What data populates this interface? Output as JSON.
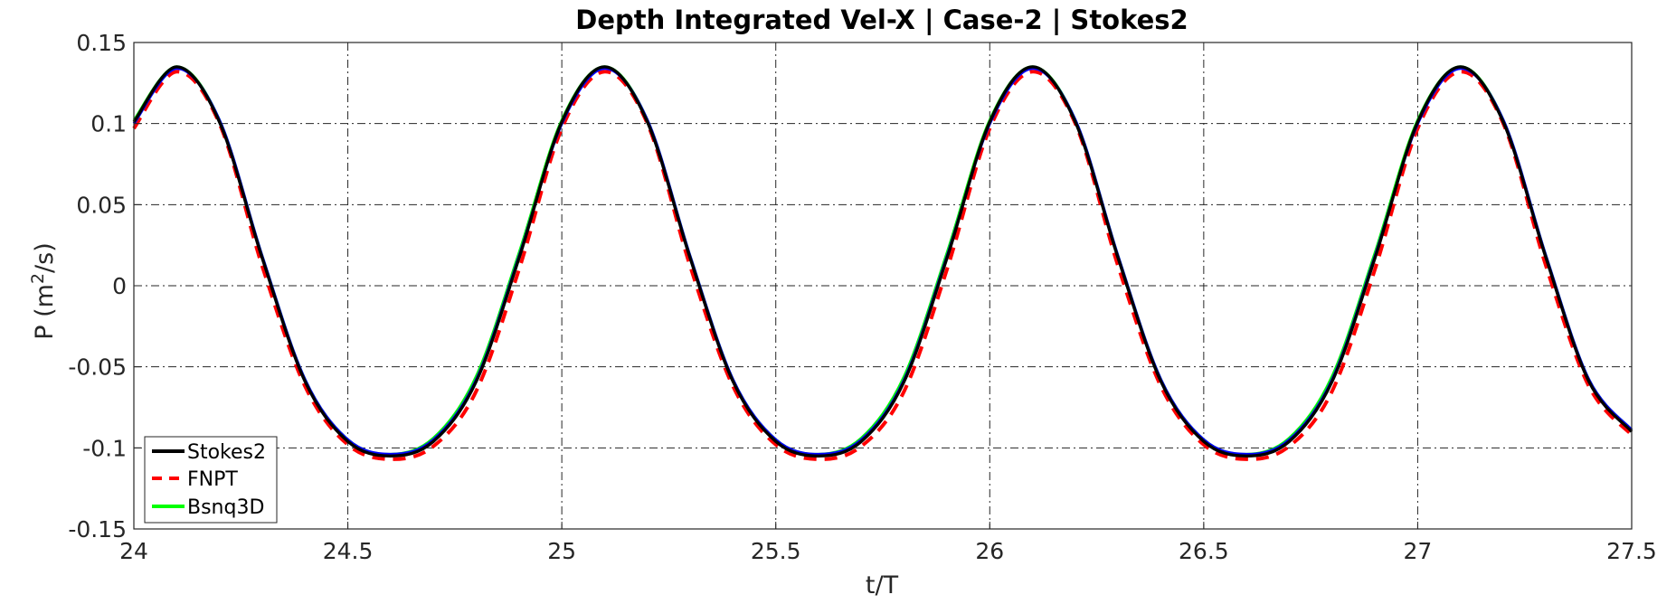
{
  "chart_data": {
    "type": "line",
    "title": "Depth Integrated Vel-X | Case-2 | Stokes2",
    "xlabel": "t/T",
    "ylabel": {
      "main": "P (m",
      "sup": "2",
      "tail": "/s)"
    },
    "xlim": [
      24,
      27.5
    ],
    "ylim": [
      -0.15,
      0.15
    ],
    "xticks": [
      24,
      24.5,
      25,
      25.5,
      26,
      26.5,
      27,
      27.5
    ],
    "xtick_labels": [
      "24",
      "24.5",
      "25",
      "25.5",
      "26",
      "26.5",
      "27",
      "27.5"
    ],
    "yticks": [
      0.15,
      0.1,
      0.05,
      0,
      -0.05,
      -0.1,
      -0.15
    ],
    "ytick_labels": [
      "0.15",
      "0.1",
      "0.05",
      "0",
      "-0.05",
      "-0.1",
      "-0.15"
    ],
    "grid": true,
    "legend_position": "bottom-left",
    "series": [
      {
        "name": "Stokes2",
        "color": "#000000",
        "style": "solid",
        "x": [
          24.0,
          24.1,
          24.2,
          24.3,
          24.4,
          24.5,
          24.6,
          24.7,
          24.8,
          24.9,
          25.0,
          25.1,
          25.2,
          25.3,
          25.4,
          25.5,
          25.6,
          25.7,
          25.8,
          25.9,
          26.0,
          26.1,
          26.2,
          26.3,
          26.4,
          26.5,
          26.6,
          26.7,
          26.8,
          26.9,
          27.0,
          27.1,
          27.2,
          27.3,
          27.4,
          27.5
        ],
        "y": [
          0.101,
          0.135,
          0.101,
          0.017,
          -0.059,
          -0.096,
          -0.105,
          -0.096,
          -0.059,
          0.017,
          0.101,
          0.135,
          0.101,
          0.017,
          -0.059,
          -0.096,
          -0.105,
          -0.096,
          -0.059,
          0.017,
          0.101,
          0.135,
          0.101,
          0.017,
          -0.059,
          -0.096,
          -0.105,
          -0.096,
          -0.059,
          0.017,
          0.101,
          0.135,
          0.101,
          0.017,
          -0.059,
          -0.09
        ]
      },
      {
        "name": "FNPT",
        "color": "#ff0000",
        "style": "dashed",
        "x": [
          24.0,
          24.1,
          24.2,
          24.3,
          24.4,
          24.5,
          24.6,
          24.7,
          24.8,
          24.9,
          25.0,
          25.1,
          25.2,
          25.3,
          25.4,
          25.5,
          25.6,
          25.7,
          25.8,
          25.9,
          26.0,
          26.1,
          26.2,
          26.3,
          26.4,
          26.5,
          26.6,
          26.7,
          26.8,
          26.9,
          27.0,
          27.1,
          27.2,
          27.3,
          27.4,
          27.5
        ],
        "y": [
          0.097,
          0.132,
          0.1,
          0.012,
          -0.062,
          -0.098,
          -0.107,
          -0.099,
          -0.065,
          0.01,
          0.097,
          0.132,
          0.1,
          0.012,
          -0.062,
          -0.098,
          -0.107,
          -0.099,
          -0.065,
          0.01,
          0.097,
          0.132,
          0.1,
          0.012,
          -0.062,
          -0.098,
          -0.107,
          -0.099,
          -0.065,
          0.01,
          0.097,
          0.132,
          0.1,
          0.012,
          -0.062,
          -0.092
        ]
      },
      {
        "name": "Bsnq3D",
        "color": "#00ff00",
        "style": "solid",
        "x": [
          24.0,
          24.1,
          24.2,
          24.3,
          24.4,
          24.5,
          24.6,
          24.7,
          24.8,
          24.9,
          25.0,
          25.1,
          25.2,
          25.3,
          25.4,
          25.5,
          25.6,
          25.7,
          25.8,
          25.9,
          26.0,
          26.1,
          26.2,
          26.3,
          26.4,
          26.5,
          26.6,
          26.7,
          26.8,
          26.9,
          27.0,
          27.1,
          27.2,
          27.3,
          27.4,
          27.5
        ],
        "y": [
          0.102,
          0.135,
          0.102,
          0.018,
          -0.058,
          -0.095,
          -0.104,
          -0.094,
          -0.056,
          0.02,
          0.102,
          0.135,
          0.102,
          0.018,
          -0.058,
          -0.095,
          -0.104,
          -0.094,
          -0.056,
          0.02,
          0.102,
          0.135,
          0.102,
          0.018,
          -0.058,
          -0.095,
          -0.104,
          -0.094,
          -0.056,
          0.02,
          0.102,
          0.135,
          0.102,
          0.018,
          -0.058,
          -0.089
        ]
      },
      {
        "color": "#0000ff",
        "style": "solid",
        "x": [
          24.0,
          24.1,
          24.2,
          24.3,
          24.4,
          24.5,
          24.6,
          24.7,
          24.8,
          24.9,
          25.0,
          25.1,
          25.2,
          25.3,
          25.4,
          25.5,
          25.6,
          25.7,
          25.8,
          25.9,
          26.0,
          26.1,
          26.2,
          26.3,
          26.4,
          26.5,
          26.6,
          26.7,
          26.8,
          26.9,
          27.0,
          27.1,
          27.2,
          27.3,
          27.4,
          27.5
        ],
        "y": [
          0.1,
          0.134,
          0.102,
          0.018,
          -0.058,
          -0.095,
          -0.104,
          -0.095,
          -0.058,
          0.018,
          0.1,
          0.134,
          0.102,
          0.018,
          -0.058,
          -0.095,
          -0.104,
          -0.095,
          -0.058,
          0.018,
          0.1,
          0.134,
          0.102,
          0.018,
          -0.058,
          -0.095,
          -0.104,
          -0.095,
          -0.058,
          0.018,
          0.1,
          0.134,
          0.102,
          0.018,
          -0.058,
          -0.089
        ]
      }
    ],
    "legend": [
      "Stokes2",
      "FNPT",
      "Bsnq3D"
    ]
  }
}
